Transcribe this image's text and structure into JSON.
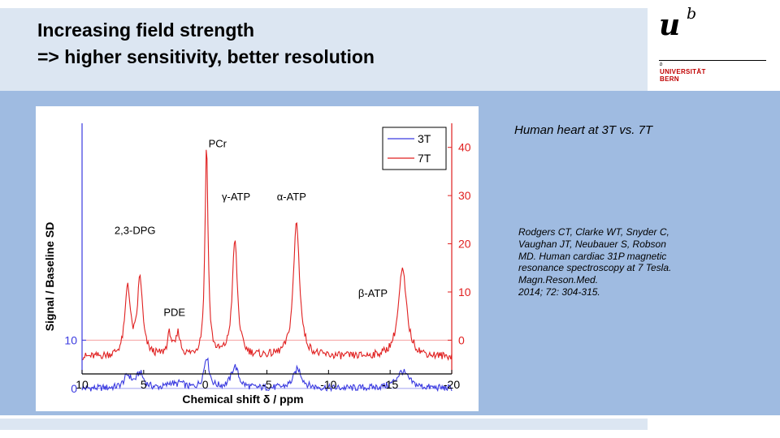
{
  "slide": {
    "title_lines": [
      "Increasing field strength",
      "=> higher sensitivity, better resolution"
    ],
    "caption": "Human heart at 3T vs. 7T",
    "reference_lines": [
      "Rodgers CT, Clarke WT, Snyder C,",
      "Vaughan JT, Neubauer S, Robson",
      "MD. Human cardiac 31P magnetic",
      "resonance spectroscopy at 7 Tesla.",
      "Magn.Reson.Med.",
      "2014; 72: 304-315."
    ]
  },
  "logo": {
    "letter_u": "u",
    "superscript_b": "b",
    "small_b": "b",
    "line1": "UNIVERSITÄT",
    "line2": "BERN",
    "color": "#c00000"
  },
  "colors": {
    "series_3T": "#3a3ae0",
    "series_7T": "#e02020",
    "header_band": "#dce6f2",
    "content_band": "#9fbbe1"
  },
  "chart_data": {
    "type": "line",
    "xlabel": "Chemical shift δ / ppm",
    "ylabel_left": "Signal / Baseline SD",
    "x_ticks": [
      "10",
      "5",
      "0",
      "-5",
      "-10",
      "-15",
      "-20"
    ],
    "x_tick_values": [
      10,
      5,
      0,
      -5,
      -10,
      -15,
      -20
    ],
    "xlim": [
      10,
      -20
    ],
    "left_ticks": [
      "0",
      "10"
    ],
    "left_tick_values": [
      0,
      10
    ],
    "right_ticks": [
      "0",
      "10",
      "20",
      "30",
      "40"
    ],
    "right_tick_values": [
      0,
      10,
      20,
      30,
      40
    ],
    "right_ylim": [
      -7,
      45
    ],
    "grid": false,
    "legend": "top-right",
    "annotations": [
      {
        "text": "2,3-DPG",
        "x": 5.7,
        "y": 22
      },
      {
        "text": "PDE",
        "x": 2.5,
        "y": 5
      },
      {
        "text": "PCr",
        "x": -1.0,
        "y": 40
      },
      {
        "text": "γ-ATP",
        "x": -2.5,
        "y": 29
      },
      {
        "text": "α-ATP",
        "x": -7.0,
        "y": 29
      },
      {
        "text": "β-ATP",
        "x": -13.6,
        "y": 9
      }
    ],
    "series": [
      {
        "name": "3T",
        "baseline_offset": 0,
        "peaks": [
          {
            "x": 6.3,
            "h": 2.5,
            "w": 0.35
          },
          {
            "x": 5.3,
            "h": 3.0,
            "w": 0.35
          },
          {
            "x": 2.8,
            "h": 1.0,
            "w": 0.3
          },
          {
            "x": 2.0,
            "h": 1.0,
            "w": 0.3
          },
          {
            "x": -0.1,
            "h": 6.5,
            "w": 0.25
          },
          {
            "x": -2.4,
            "h": 4.5,
            "w": 0.35
          },
          {
            "x": -7.5,
            "h": 4.0,
            "w": 0.4
          },
          {
            "x": -16.0,
            "h": 3.5,
            "w": 0.6
          }
        ]
      },
      {
        "name": "7T",
        "baseline_offset": 0,
        "peaks": [
          {
            "x": 6.3,
            "h": 14.5,
            "w": 0.25
          },
          {
            "x": 5.3,
            "h": 16.0,
            "w": 0.25
          },
          {
            "x": 2.9,
            "h": 4.5,
            "w": 0.2
          },
          {
            "x": 2.2,
            "h": 4.5,
            "w": 0.2
          },
          {
            "x": -0.1,
            "h": 44.0,
            "w": 0.15
          },
          {
            "x": -2.4,
            "h": 24.0,
            "w": 0.25
          },
          {
            "x": -7.4,
            "h": 28.0,
            "w": 0.3
          },
          {
            "x": -16.0,
            "h": 18.0,
            "w": 0.4
          }
        ]
      }
    ]
  }
}
